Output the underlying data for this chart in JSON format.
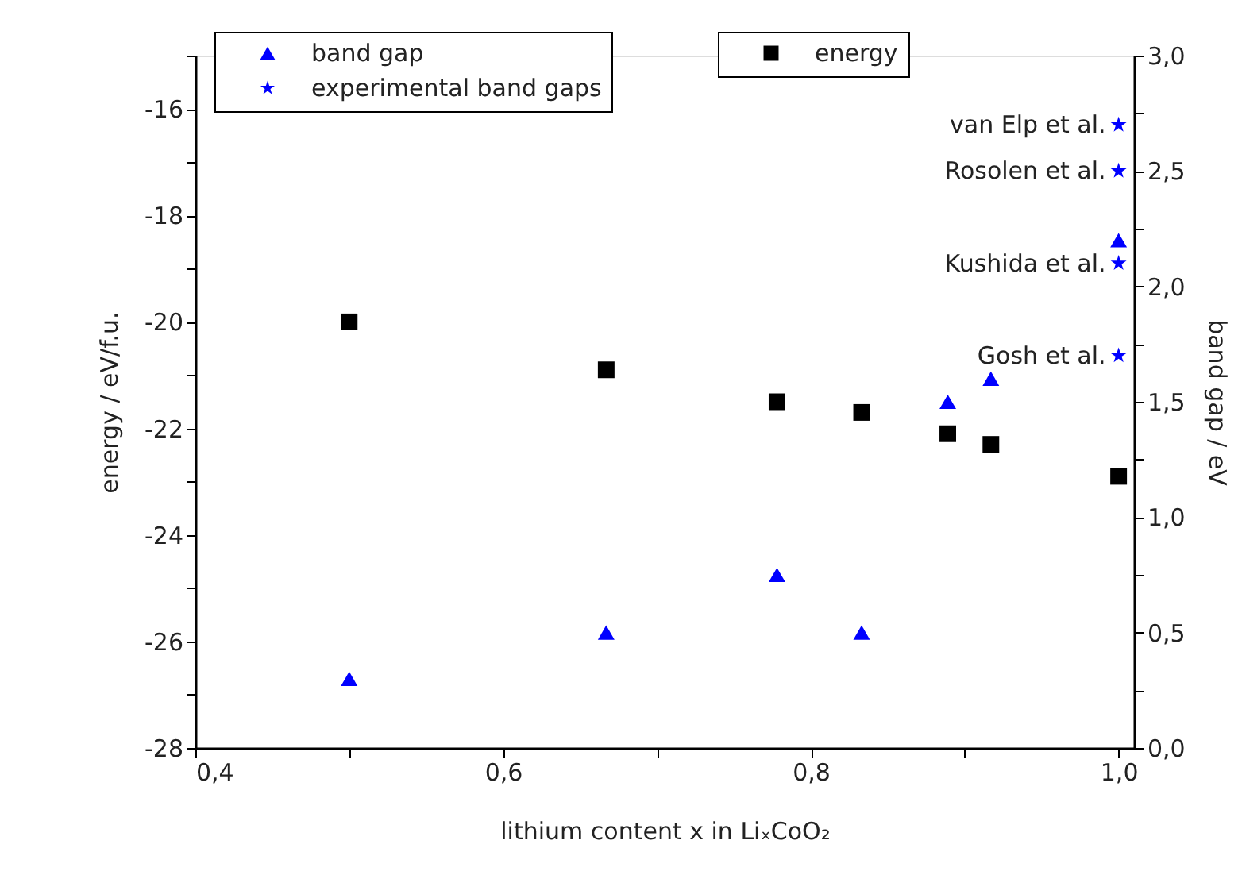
{
  "chart_data": {
    "type": "scatter",
    "xlabel": "lithium content x in LiₓCoO₂",
    "ylabel": "energy / eV/f.u.",
    "y2label": "band gap / eV",
    "xlim": [
      0.4,
      1.01
    ],
    "ylim": [
      -28,
      -15
    ],
    "y2lim": [
      0,
      3
    ],
    "xticks": [
      {
        "value": 0.4,
        "label": "0,4"
      },
      {
        "value": 0.5,
        "label": null
      },
      {
        "value": 0.6,
        "label": "0,6"
      },
      {
        "value": 0.7,
        "label": null
      },
      {
        "value": 0.8,
        "label": "0,8"
      },
      {
        "value": 0.9,
        "label": null
      },
      {
        "value": 1.0,
        "label": "1,0"
      }
    ],
    "yticks": [
      -28,
      {
        "value": -27,
        "label": null
      },
      -26,
      {
        "value": -25,
        "label": null
      },
      -24,
      {
        "value": -23,
        "label": null
      },
      -22,
      {
        "value": -21,
        "label": null
      },
      -20,
      {
        "value": -19,
        "label": null
      },
      -18,
      {
        "value": -17,
        "label": null
      },
      -16,
      {
        "value": -15,
        "label": null
      }
    ],
    "y2ticks": [
      {
        "value": 0,
        "label": "0,0"
      },
      {
        "value": 0.25,
        "label": null
      },
      {
        "value": 0.5,
        "label": "0,5"
      },
      {
        "value": 0.75,
        "label": null
      },
      {
        "value": 1.0,
        "label": "1,0"
      },
      {
        "value": 1.25,
        "label": null
      },
      {
        "value": 1.5,
        "label": "1,5"
      },
      {
        "value": 1.75,
        "label": null
      },
      {
        "value": 2.0,
        "label": "2,0"
      },
      {
        "value": 2.25,
        "label": null
      },
      {
        "value": 2.5,
        "label": "2,5"
      },
      {
        "value": 2.75,
        "label": null
      },
      {
        "value": 3.0,
        "label": "3,0"
      }
    ],
    "series": [
      {
        "name": "energy",
        "color": "#000000",
        "marker": "square",
        "x": [
          0.5,
          0.667,
          0.778,
          0.833,
          0.889,
          0.917,
          1.0
        ],
        "values": [
          -20.0,
          -20.9,
          -21.5,
          -21.7,
          -22.1,
          -22.3,
          -22.9
        ]
      },
      {
        "name": "band gap",
        "color": "#0000ff",
        "marker": "triangle",
        "axis": "y2",
        "x": [
          0.5,
          0.667,
          0.778,
          0.833,
          0.889,
          0.917,
          1.0
        ],
        "values": [
          0.3,
          0.5,
          0.75,
          0.5,
          1.5,
          1.6,
          2.2
        ]
      },
      {
        "name": "experimental band gaps",
        "color": "#0000ff",
        "marker": "star",
        "axis": "y2",
        "x": [
          1.0,
          1.0,
          1.0,
          1.0
        ],
        "values": [
          2.7,
          2.5,
          2.1,
          1.7
        ]
      }
    ],
    "annotations": [
      "van Elp et al.",
      "Rosolen et al.",
      "Kushida et al.",
      "Gosh et al."
    ],
    "legend": "top",
    "grid": false
  }
}
